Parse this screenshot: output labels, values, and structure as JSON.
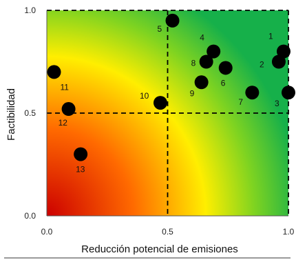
{
  "chart_data": {
    "type": "scatter",
    "title": "",
    "xlabel": "Reducción potencial de emisiones",
    "ylabel": "Factibilidad",
    "xlim": [
      0,
      1
    ],
    "ylim": [
      0,
      1
    ],
    "x_ticks": [
      "0.0",
      "0.5",
      "1.0"
    ],
    "y_ticks": [
      "0.0",
      "0.5",
      "1.0"
    ],
    "thresholds": {
      "x": 0.5,
      "y": 0.5
    },
    "gradient_colors": [
      "#cc0000",
      "#ff6a00",
      "#ffee00",
      "#7ed321",
      "#16b04a"
    ],
    "marker_color": "#000000",
    "grid": false,
    "legend": "none",
    "points": [
      {
        "label": "1",
        "x": 0.98,
        "y": 0.8
      },
      {
        "label": "2",
        "x": 0.96,
        "y": 0.75
      },
      {
        "label": "3",
        "x": 1.0,
        "y": 0.6
      },
      {
        "label": "4",
        "x": 0.69,
        "y": 0.8
      },
      {
        "label": "5",
        "x": 0.52,
        "y": 0.95
      },
      {
        "label": "6",
        "x": 0.74,
        "y": 0.72
      },
      {
        "label": "7",
        "x": 0.85,
        "y": 0.6
      },
      {
        "label": "8",
        "x": 0.66,
        "y": 0.75
      },
      {
        "label": "9",
        "x": 0.64,
        "y": 0.65
      },
      {
        "label": "10",
        "x": 0.47,
        "y": 0.55
      },
      {
        "label": "11",
        "x": 0.03,
        "y": 0.7
      },
      {
        "label": "12",
        "x": 0.09,
        "y": 0.52
      },
      {
        "label": "13",
        "x": 0.14,
        "y": 0.3
      }
    ]
  }
}
